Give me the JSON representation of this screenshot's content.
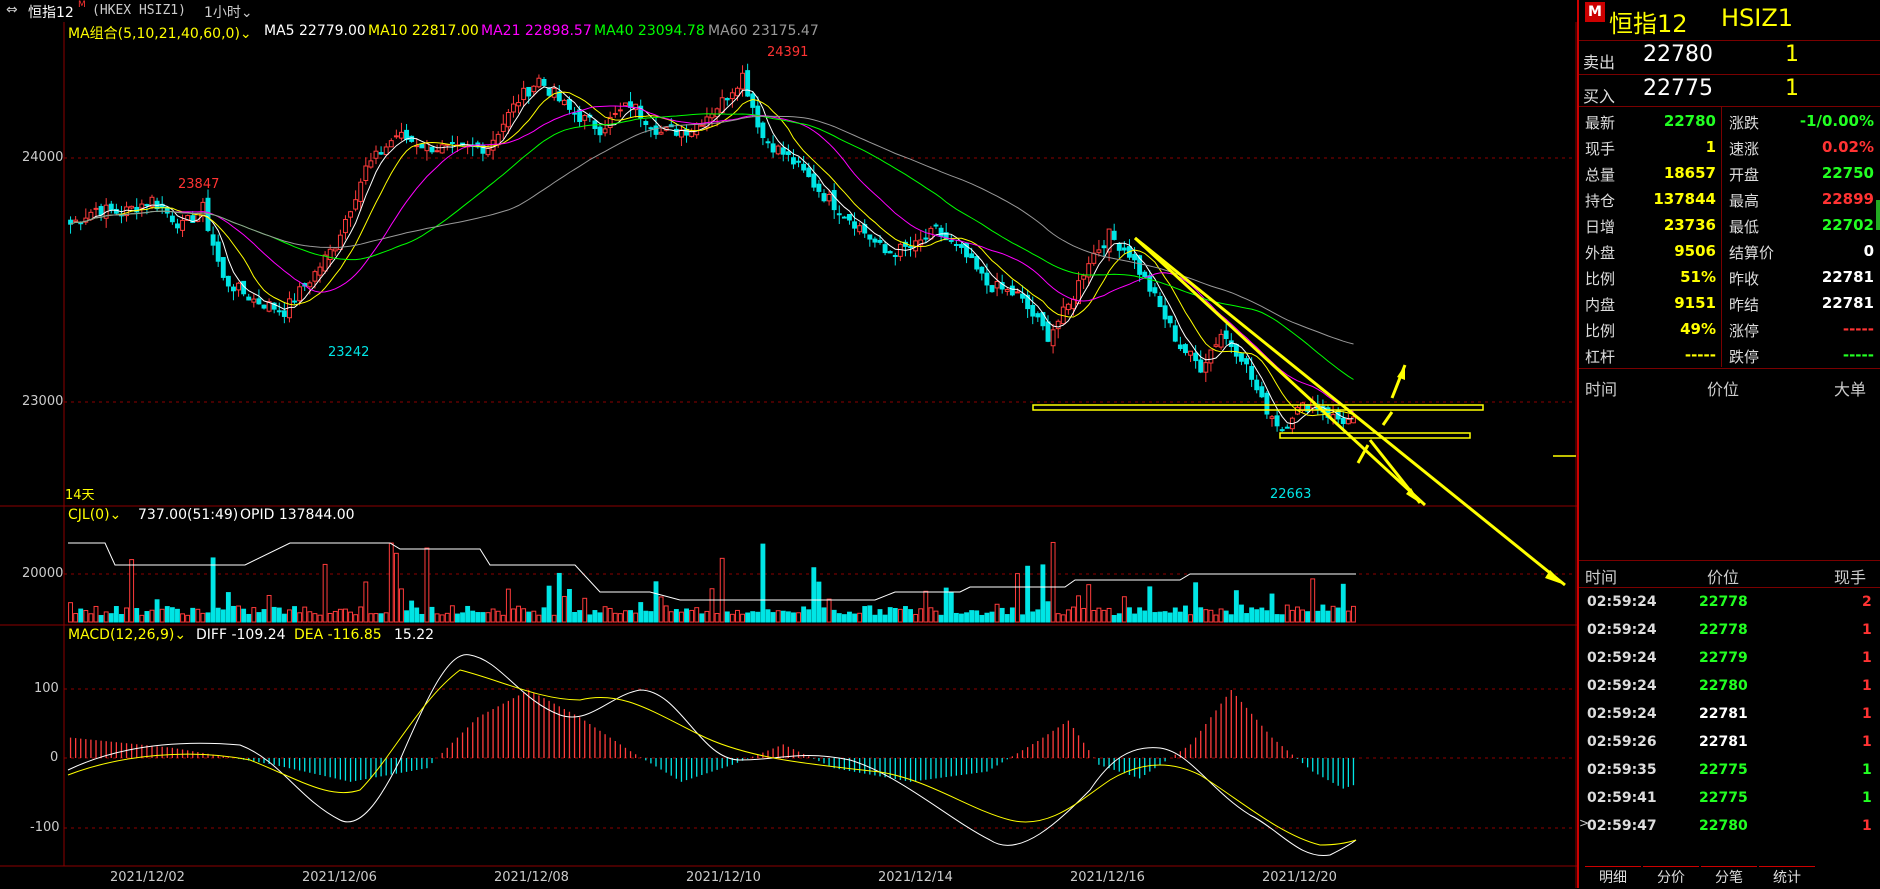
{
  "header": {
    "instrument": "恒指12",
    "superscript": "M",
    "code": "(HKEX HSIZ1)",
    "period": "1小时"
  },
  "ma_legend": {
    "combo": "MA组合(5,10,21,40,60,0)",
    "ma5": "MA5 22779.00",
    "ma10": "MA10 22817.00",
    "ma21": "MA21 22898.57",
    "ma40": "MA40 23094.78",
    "ma60": "MA60 23175.47"
  },
  "price_axis": [
    "24000",
    "23000"
  ],
  "price_annotations": {
    "high1": "23847",
    "low1": "23242",
    "peak": "24391",
    "low2": "22663",
    "days": "14天"
  },
  "volume_legend": {
    "indicator": "CJL(0)",
    "value": "737.00(51:49)",
    "opid": "OPID 137844.00",
    "axis": "20000"
  },
  "macd_legend": {
    "indicator": "MACD(12,26,9)",
    "diff": "DIFF -109.24",
    "dea": "DEA -116.85",
    "macd": "15.22",
    "axis": [
      "100",
      "0",
      "-100"
    ]
  },
  "date_axis": [
    "2021/12/02",
    "2021/12/06",
    "2021/12/08",
    "2021/12/10",
    "2021/12/14",
    "2021/12/16",
    "2021/12/20"
  ],
  "chart_data": {
    "type": "candlestick",
    "ma_periods": [
      5,
      10,
      21,
      40,
      60
    ],
    "ma_colors": {
      "ma5": "#ffffff",
      "ma10": "#ffff00",
      "ma21": "#ff00ff",
      "ma40": "#00ff00",
      "ma60": "#999999"
    },
    "ylim": [
      22500,
      24450
    ],
    "labeled_points": [
      23847,
      23242,
      24391,
      22663
    ],
    "support_level_1": 22980,
    "support_level_2": 22830
  },
  "panel": {
    "title": "恒指12",
    "code": "HSIZ1",
    "flag": "M",
    "ask_label": "卖出",
    "ask_price": "22780",
    "ask_qty": "1",
    "bid_label": "买入",
    "bid_price": "22775",
    "bid_qty": "1",
    "quote": [
      {
        "l1": "最新",
        "v1": "22780",
        "c1": "#22ff22",
        "l2": "涨跌",
        "v2": "-1/0.00%",
        "c2": "#22ff22"
      },
      {
        "l1": "现手",
        "v1": "1",
        "c1": "#ffff00",
        "l2": "速涨",
        "v2": "0.02%",
        "c2": "#ff3333"
      },
      {
        "l1": "总量",
        "v1": "18657",
        "c1": "#ffff00",
        "l2": "开盘",
        "v2": "22750",
        "c2": "#22ff22"
      },
      {
        "l1": "持仓",
        "v1": "137844",
        "c1": "#ffff00",
        "l2": "最高",
        "v2": "22899",
        "c2": "#ff3333"
      },
      {
        "l1": "日增",
        "v1": "23736",
        "c1": "#ffff00",
        "l2": "最低",
        "v2": "22702",
        "c2": "#22ff22"
      },
      {
        "l1": "外盘",
        "v1": "9506",
        "c1": "#ffff00",
        "l2": "结算价",
        "v2": "0",
        "c2": "#ffffff"
      },
      {
        "l1": "比例",
        "v1": "51%",
        "c1": "#ffff00",
        "l2": "昨收",
        "v2": "22781",
        "c2": "#ffffff"
      },
      {
        "l1": "内盘",
        "v1": "9151",
        "c1": "#ffff00",
        "l2": "昨结",
        "v2": "22781",
        "c2": "#ffffff"
      },
      {
        "l1": "比例",
        "v1": "49%",
        "c1": "#ffff00",
        "l2": "涨停",
        "v2": "-----",
        "c2": "#ff3333"
      },
      {
        "l1": "杠杆",
        "v1": "-----",
        "c1": "#ffff00",
        "l2": "跌停",
        "v2": "-----",
        "c2": "#22ff22"
      }
    ],
    "big_header": {
      "time": "时间",
      "price": "价位",
      "big": "大单"
    },
    "tick_header": {
      "time": "时间",
      "price": "价位",
      "qty": "现手"
    },
    "ticks": [
      {
        "time": "02:59:24",
        "price": "22778",
        "pc": "#22ff22",
        "qty": "2",
        "qc": "#ff3333"
      },
      {
        "time": "02:59:24",
        "price": "22778",
        "pc": "#22ff22",
        "qty": "1",
        "qc": "#ff3333"
      },
      {
        "time": "02:59:24",
        "price": "22779",
        "pc": "#22ff22",
        "qty": "1",
        "qc": "#ff3333"
      },
      {
        "time": "02:59:24",
        "price": "22780",
        "pc": "#22ff22",
        "qty": "1",
        "qc": "#ff3333"
      },
      {
        "time": "02:59:24",
        "price": "22781",
        "pc": "#ffffff",
        "qty": "1",
        "qc": "#ff3333"
      },
      {
        "time": "02:59:26",
        "price": "22781",
        "pc": "#ffffff",
        "qty": "1",
        "qc": "#ff3333"
      },
      {
        "time": "02:59:35",
        "price": "22775",
        "pc": "#22ff22",
        "qty": "1",
        "qc": "#22ff22"
      },
      {
        "time": "02:59:41",
        "price": "22775",
        "pc": "#22ff22",
        "qty": "1",
        "qc": "#22ff22"
      },
      {
        "time": "02:59:47",
        "price": "22780",
        "pc": "#22ff22",
        "qty": "1",
        "qc": "#ff3333"
      }
    ],
    "tabs": [
      "明细",
      "分价",
      "分笔",
      "统计"
    ]
  }
}
